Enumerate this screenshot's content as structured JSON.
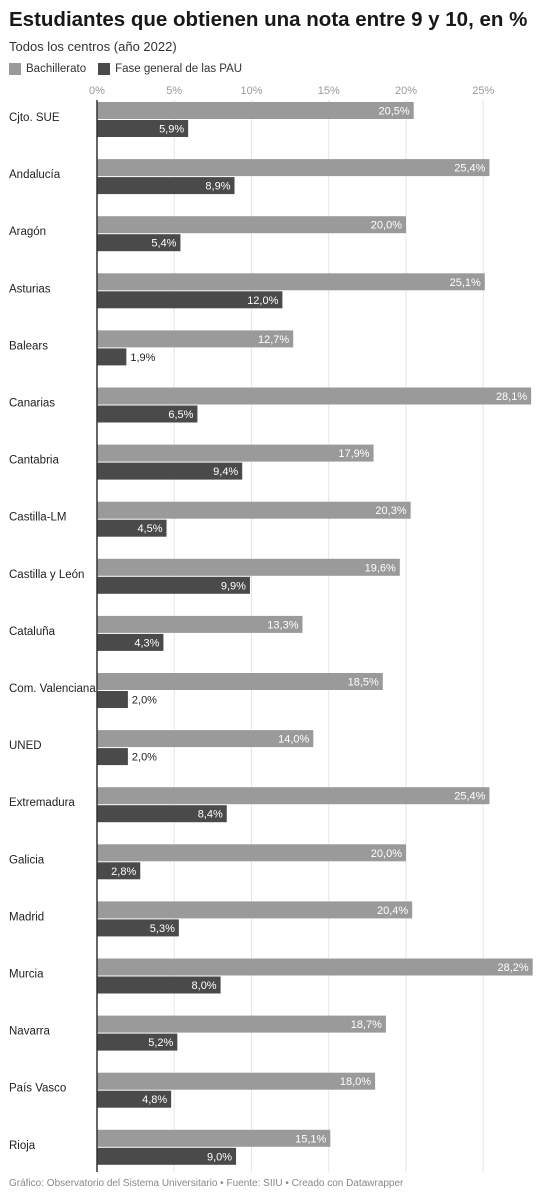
{
  "title": "Estudiantes que obtienen una nota entre 9 y 10, en %",
  "subtitle": "Todos los centros (año 2022)",
  "footer": "Gráfico: Observatorio del Sistema Universitario • Fuente: SIIU • Creado con Datawrapper",
  "colors": {
    "bachillerato": "#9a9a9a",
    "pau": "#4a4a4a",
    "grid": "#e6e6e6",
    "axis": "#333333"
  },
  "chart_data": {
    "type": "bar",
    "orientation": "horizontal",
    "x_ticks": [
      "0%",
      "5%",
      "10%",
      "15%",
      "20%",
      "25%"
    ],
    "x_tick_values": [
      0,
      5,
      10,
      15,
      20,
      25
    ],
    "categories": [
      "Cjto. SUE",
      "Andalucía",
      "Aragón",
      "Asturias",
      "Balears",
      "Canarias",
      "Cantabria",
      "Castilla-LM",
      "Castilla y León",
      "Cataluña",
      "Com. Valenciana",
      "UNED",
      "Extremadura",
      "Galicia",
      "Madrid",
      "Murcia",
      "Navarra",
      "País Vasco",
      "Rioja"
    ],
    "series": [
      {
        "name": "Bachillerato",
        "values": [
          20.5,
          25.4,
          20.0,
          25.1,
          12.7,
          28.1,
          17.9,
          20.3,
          19.6,
          13.3,
          18.5,
          14.0,
          25.4,
          20.0,
          20.4,
          28.2,
          18.7,
          18.0,
          15.1
        ],
        "labels": [
          "20,5%",
          "25,4%",
          "20,0%",
          "25,1%",
          "12,7%",
          "28,1%",
          "17,9%",
          "20,3%",
          "19,6%",
          "13,3%",
          "18,5%",
          "14,0%",
          "25,4%",
          "20,0%",
          "20,4%",
          "28,2%",
          "18,7%",
          "18,0%",
          "15,1%"
        ]
      },
      {
        "name": "Fase general de las PAU",
        "values": [
          5.9,
          8.9,
          5.4,
          12.0,
          1.9,
          6.5,
          9.4,
          4.5,
          9.9,
          4.3,
          2.0,
          2.0,
          8.4,
          2.8,
          5.3,
          8.0,
          5.2,
          4.8,
          9.0
        ],
        "labels": [
          "5,9%",
          "8,9%",
          "5,4%",
          "12,0%",
          "1,9%",
          "6,5%",
          "9,4%",
          "4,5%",
          "9,9%",
          "4,3%",
          "2,0%",
          "2,0%",
          "8,4%",
          "2,8%",
          "5,3%",
          "8,0%",
          "5,2%",
          "4,8%",
          "9,0%"
        ]
      }
    ],
    "xlim": [
      0,
      28.2
    ],
    "grid": true,
    "legend": "top-left"
  }
}
